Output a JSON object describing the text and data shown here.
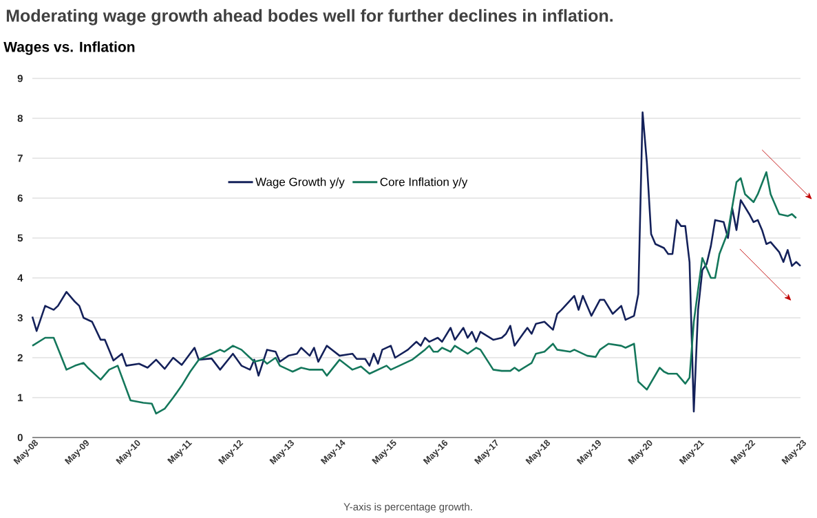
{
  "chart_data": {
    "type": "line",
    "title": "Moderating wage growth ahead bodes well for further declines in inflation.",
    "subtitle": "Wages vs. Inflation",
    "annotations": [
      "Y-axis is percentage growth."
    ],
    "xlim": [
      "2008-05",
      "2023-05"
    ],
    "xticks": [
      {
        "value": "2008-05",
        "label": "May-08"
      },
      {
        "value": "2009-05",
        "label": "May-09"
      },
      {
        "value": "2010-05",
        "label": "May-10"
      },
      {
        "value": "2011-05",
        "label": "May-11"
      },
      {
        "value": "2012-05",
        "label": "May-12"
      },
      {
        "value": "2013-05",
        "label": "May-13"
      },
      {
        "value": "2014-05",
        "label": "May-14"
      },
      {
        "value": "2015-05",
        "label": "May-15"
      },
      {
        "value": "2016-05",
        "label": "May-16"
      },
      {
        "value": "2017-05",
        "label": "May-17"
      },
      {
        "value": "2018-05",
        "label": "May-18"
      },
      {
        "value": "2019-05",
        "label": "May-19"
      },
      {
        "value": "2020-05",
        "label": "May-20"
      },
      {
        "value": "2021-05",
        "label": "May-21"
      },
      {
        "value": "2022-05",
        "label": "May-22"
      },
      {
        "value": "2023-05",
        "label": "May-23"
      }
    ],
    "ylim": [
      0,
      9
    ],
    "yticks": [
      0,
      1,
      2,
      3,
      4,
      5,
      6,
      7,
      8,
      9
    ],
    "grid": "y",
    "legend": "top",
    "marker": "none",
    "line_style": "solid",
    "series": [
      {
        "name": "Wage Growth y/y",
        "color": "#14215a",
        "x": [
          "2008-05",
          "2008-06",
          "2008-08",
          "2008-10",
          "2008-11",
          "2009-01",
          "2009-03",
          "2009-04",
          "2009-05",
          "2009-07",
          "2009-09",
          "2009-10",
          "2009-12",
          "2010-02",
          "2010-03",
          "2010-06",
          "2010-08",
          "2010-10",
          "2010-12",
          "2011-02",
          "2011-04",
          "2011-07",
          "2011-08",
          "2011-11",
          "2012-01",
          "2012-04",
          "2012-06",
          "2012-08",
          "2012-09",
          "2012-10",
          "2012-12",
          "2013-02",
          "2013-03",
          "2013-05",
          "2013-07",
          "2013-08",
          "2013-10",
          "2013-11",
          "2013-12",
          "2014-02",
          "2014-05",
          "2014-08",
          "2014-09",
          "2014-11",
          "2014-12",
          "2015-01",
          "2015-02",
          "2015-03",
          "2015-05",
          "2015-06",
          "2015-09",
          "2015-11",
          "2015-12",
          "2016-01",
          "2016-02",
          "2016-04",
          "2016-05",
          "2016-07",
          "2016-08",
          "2016-10",
          "2016-11",
          "2016-12",
          "2017-01",
          "2017-02",
          "2017-05",
          "2017-07",
          "2017-08",
          "2017-09",
          "2017-10",
          "2018-01",
          "2018-02",
          "2018-03",
          "2018-05",
          "2018-07",
          "2018-08",
          "2018-09",
          "2018-12",
          "2019-01",
          "2019-02",
          "2019-04",
          "2019-06",
          "2019-07",
          "2019-09",
          "2019-11",
          "2019-12",
          "2020-02",
          "2020-03",
          "2020-04",
          "2020-05",
          "2020-06",
          "2020-07",
          "2020-09",
          "2020-10",
          "2020-11",
          "2020-12",
          "2021-01",
          "2021-02",
          "2021-03",
          "2021-04",
          "2021-05",
          "2021-06",
          "2021-07",
          "2021-08",
          "2021-09",
          "2021-11",
          "2021-12",
          "2022-01",
          "2022-02",
          "2022-03",
          "2022-05",
          "2022-06",
          "2022-07",
          "2022-08",
          "2022-09",
          "2022-10",
          "2022-12",
          "2023-01",
          "2023-02",
          "2023-03",
          "2023-04",
          "2023-05"
        ],
        "values": [
          3.03,
          2.67,
          3.3,
          3.2,
          3.3,
          3.65,
          3.4,
          3.3,
          3.0,
          2.9,
          2.45,
          2.45,
          1.93,
          2.1,
          1.8,
          1.85,
          1.75,
          1.95,
          1.72,
          2.0,
          1.82,
          2.25,
          1.95,
          1.98,
          1.7,
          2.1,
          1.8,
          1.7,
          1.95,
          1.55,
          2.2,
          2.15,
          1.9,
          2.05,
          2.1,
          2.25,
          2.05,
          2.25,
          1.9,
          2.3,
          2.05,
          2.1,
          1.97,
          1.97,
          1.8,
          2.1,
          1.85,
          2.2,
          2.3,
          2.0,
          2.2,
          2.4,
          2.3,
          2.5,
          2.4,
          2.5,
          2.4,
          2.75,
          2.45,
          2.75,
          2.5,
          2.65,
          2.4,
          2.65,
          2.45,
          2.5,
          2.6,
          2.8,
          2.3,
          2.75,
          2.6,
          2.85,
          2.9,
          2.7,
          3.1,
          3.2,
          3.55,
          3.2,
          3.55,
          3.05,
          3.45,
          3.45,
          3.1,
          3.3,
          2.95,
          3.05,
          3.6,
          8.15,
          6.9,
          5.1,
          4.85,
          4.75,
          4.6,
          4.6,
          5.45,
          5.3,
          5.3,
          4.4,
          0.65,
          3.2,
          4.2,
          4.35,
          4.8,
          5.45,
          5.4,
          5.0,
          5.75,
          5.2,
          5.95,
          5.6,
          5.4,
          5.45,
          5.2,
          4.85,
          4.9,
          4.65,
          4.4,
          4.7,
          4.3,
          4.4,
          4.3
        ]
      },
      {
        "name": "Core Inflation y/y",
        "color": "#14775b",
        "x": [
          "2008-05",
          "2008-08",
          "2008-10",
          "2009-01",
          "2009-03",
          "2009-05",
          "2009-06",
          "2009-09",
          "2009-11",
          "2010-01",
          "2010-04",
          "2010-07",
          "2010-09",
          "2010-10",
          "2010-12",
          "2011-02",
          "2011-04",
          "2011-06",
          "2011-08",
          "2011-11",
          "2012-01",
          "2012-02",
          "2012-04",
          "2012-06",
          "2012-08",
          "2012-09",
          "2012-11",
          "2012-12",
          "2013-02",
          "2013-03",
          "2013-05",
          "2013-06",
          "2013-08",
          "2013-10",
          "2014-01",
          "2014-02",
          "2014-05",
          "2014-08",
          "2014-10",
          "2014-12",
          "2015-04",
          "2015-05",
          "2015-07",
          "2015-10",
          "2016-01",
          "2016-02",
          "2016-03",
          "2016-04",
          "2016-05",
          "2016-07",
          "2016-08",
          "2016-11",
          "2017-01",
          "2017-02",
          "2017-05",
          "2017-07",
          "2017-09",
          "2017-10",
          "2017-11",
          "2018-02",
          "2018-03",
          "2018-05",
          "2018-07",
          "2018-08",
          "2018-11",
          "2018-12",
          "2019-03",
          "2019-05",
          "2019-06",
          "2019-08",
          "2019-11",
          "2019-12",
          "2020-02",
          "2020-03",
          "2020-05",
          "2020-08",
          "2020-09",
          "2020-10",
          "2020-12",
          "2021-02",
          "2021-03",
          "2021-04",
          "2021-06",
          "2021-08",
          "2021-09",
          "2021-10",
          "2021-12",
          "2022-02",
          "2022-03",
          "2022-04",
          "2022-06",
          "2022-07",
          "2022-09",
          "2022-10",
          "2022-12",
          "2023-02",
          "2023-03",
          "2023-04"
        ],
        "values": [
          2.3,
          2.5,
          2.5,
          1.7,
          1.8,
          1.87,
          1.75,
          1.45,
          1.7,
          1.8,
          0.93,
          0.87,
          0.85,
          0.6,
          0.72,
          1.0,
          1.3,
          1.65,
          1.95,
          2.1,
          2.2,
          2.15,
          2.3,
          2.2,
          2.0,
          1.9,
          1.95,
          1.85,
          2.0,
          1.8,
          1.7,
          1.65,
          1.75,
          1.7,
          1.7,
          1.55,
          1.95,
          1.7,
          1.78,
          1.6,
          1.8,
          1.7,
          1.8,
          1.95,
          2.2,
          2.3,
          2.15,
          2.15,
          2.25,
          2.15,
          2.3,
          2.1,
          2.25,
          2.2,
          1.7,
          1.67,
          1.67,
          1.75,
          1.67,
          1.87,
          2.1,
          2.15,
          2.35,
          2.2,
          2.15,
          2.2,
          2.05,
          2.02,
          2.2,
          2.35,
          2.3,
          2.25,
          2.35,
          1.4,
          1.2,
          1.75,
          1.65,
          1.6,
          1.6,
          1.35,
          1.5,
          2.9,
          4.5,
          4.0,
          4.0,
          4.6,
          5.15,
          6.4,
          6.5,
          6.1,
          5.9,
          6.1,
          6.65,
          6.1,
          5.6,
          5.55,
          5.6,
          5.5
        ]
      }
    ]
  }
}
